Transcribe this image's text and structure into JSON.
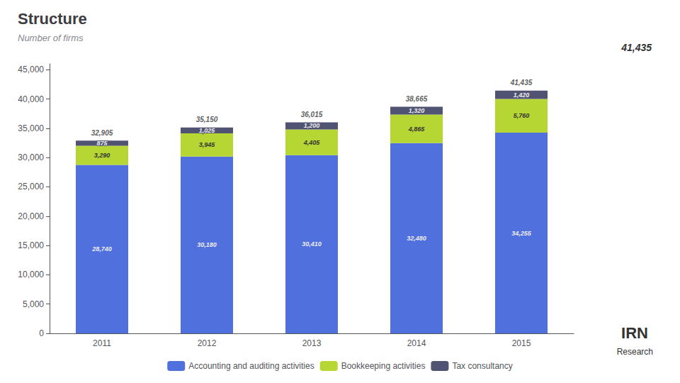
{
  "chart_data": {
    "type": "bar",
    "title": "Structure",
    "subtitle": "Number of firms",
    "categories": [
      "2011",
      "2012",
      "2013",
      "2014",
      "2015"
    ],
    "stacked": true,
    "data_labels": true,
    "series": [
      {
        "name": "Accounting and auditing activities",
        "values": [
          28740,
          30180,
          30410,
          32480,
          34255
        ],
        "value_labels": [
          "28,740",
          "30,180",
          "30,410",
          "32,480",
          "34,255"
        ]
      },
      {
        "name": "Bookkeeping activities",
        "values": [
          3290,
          3945,
          4405,
          4865,
          5760
        ],
        "value_labels": [
          "3,290",
          "3,945",
          "4,405",
          "4,865",
          "5,760"
        ]
      },
      {
        "name": "Tax consultancy",
        "values": [
          875,
          1025,
          1200,
          1320,
          1420
        ],
        "value_labels": [
          "875",
          "1,025",
          "1,200",
          "1,320",
          "1,420"
        ]
      }
    ],
    "totals": [
      32905,
      35150,
      36015,
      38665,
      41435
    ],
    "total_labels": [
      "32,905",
      "35,150",
      "36,015",
      "38,665",
      "41,435"
    ],
    "ylim": [
      0,
      46000
    ],
    "yticks": [
      0,
      {
        "value": 5000,
        "label": "5,000"
      },
      {
        "value": 10000,
        "label": "10,000"
      },
      {
        "value": 15000,
        "label": "15,000"
      },
      {
        "value": 20000,
        "label": "20,000"
      },
      {
        "value": 25000,
        "label": "25,000"
      },
      {
        "value": 30000,
        "label": "30,000"
      },
      {
        "value": 35000,
        "label": "35,000"
      },
      {
        "value": 40000,
        "label": "40,000"
      },
      {
        "value": 45000,
        "label": "45,000"
      }
    ],
    "grid": false,
    "legend": "bottom",
    "annotations": [
      "41,435",
      "IRN",
      "Research"
    ]
  }
}
